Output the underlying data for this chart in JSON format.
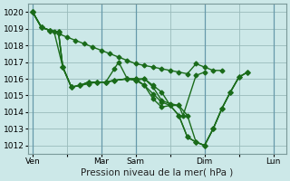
{
  "background_color": "#cce8e8",
  "grid_color": "#99bbbb",
  "line_color": "#1a6b1a",
  "marker": "D",
  "markersize": 2.5,
  "linewidth": 1.0,
  "ylim": [
    1011.5,
    1020.5
  ],
  "yticks": [
    1012,
    1013,
    1014,
    1015,
    1016,
    1017,
    1018,
    1019,
    1020
  ],
  "xlabel": "Pression niveau de la mer( hPa )",
  "xlabel_fontsize": 7.5,
  "tick_fontsize": 6.5,
  "xtick_labels": [
    "Ven",
    "",
    "Mar",
    "Sam",
    "",
    "Dim",
    "",
    "Lun"
  ],
  "xtick_positions": [
    0,
    16,
    32,
    48,
    64,
    80,
    96,
    112
  ],
  "xlim": [
    -2,
    118
  ],
  "vlines": [
    0,
    32,
    48,
    80,
    112
  ],
  "lines": [
    [
      0,
      1020.0,
      4,
      1019.1,
      8,
      1018.9,
      12,
      1018.7,
      16,
      1018.5,
      20,
      1018.3,
      24,
      1018.1,
      28,
      1017.9,
      32,
      1017.7,
      36,
      1017.5,
      40,
      1017.3,
      44,
      1017.1,
      48,
      1016.9,
      52,
      1016.8,
      56,
      1016.7,
      60,
      1016.6,
      64,
      1016.5,
      68,
      1016.4,
      72,
      1016.3,
      76,
      1016.9,
      80,
      1016.7,
      84,
      1016.5,
      88,
      1016.5
    ],
    [
      0,
      1020.0,
      4,
      1019.1,
      8,
      1018.9,
      10,
      1018.8,
      14,
      1016.7,
      18,
      1015.5,
      22,
      1015.6,
      26,
      1015.7,
      30,
      1015.8,
      34,
      1015.8,
      38,
      1016.6,
      40,
      1017.0,
      44,
      1016.0,
      48,
      1015.9,
      52,
      1016.0,
      56,
      1015.6,
      60,
      1015.2,
      64,
      1014.4,
      68,
      1014.4,
      70,
      1013.8,
      76,
      1016.2,
      80,
      1016.4
    ],
    [
      0,
      1020.0,
      4,
      1019.1,
      8,
      1018.9,
      12,
      1018.8,
      14,
      1016.7,
      18,
      1015.5,
      22,
      1015.6,
      26,
      1015.8,
      30,
      1015.8,
      34,
      1015.8,
      38,
      1015.9,
      44,
      1016.0,
      48,
      1016.0,
      52,
      1016.0,
      56,
      1015.5,
      60,
      1014.7,
      64,
      1014.5,
      68,
      1014.4,
      72,
      1013.8,
      76,
      1012.2,
      80,
      1012.0,
      84,
      1013.0,
      88,
      1014.2,
      92,
      1015.2,
      96,
      1016.1,
      100,
      1016.4
    ],
    [
      0,
      1020.0,
      4,
      1019.1,
      8,
      1018.9,
      12,
      1018.8,
      14,
      1016.7,
      18,
      1015.5,
      22,
      1015.6,
      26,
      1015.8,
      30,
      1015.8,
      34,
      1015.8,
      38,
      1015.9,
      44,
      1016.0,
      48,
      1015.9,
      52,
      1015.6,
      56,
      1014.8,
      60,
      1014.3,
      64,
      1014.4,
      68,
      1013.8,
      72,
      1012.5,
      76,
      1012.2,
      80,
      1012.0,
      84,
      1013.0,
      88,
      1014.2,
      92,
      1015.2,
      96,
      1016.1,
      100,
      1016.4
    ],
    [
      0,
      1020.0,
      4,
      1019.1,
      8,
      1018.9,
      12,
      1018.8,
      14,
      1016.7,
      18,
      1015.5,
      22,
      1015.6,
      26,
      1015.8,
      30,
      1015.8,
      34,
      1015.8,
      38,
      1015.9,
      44,
      1016.0,
      48,
      1016.0,
      52,
      1015.6,
      56,
      1015.1,
      60,
      1014.6,
      64,
      1014.4,
      68,
      1013.8,
      72,
      1012.5,
      76,
      1012.2,
      80,
      1012.0,
      84,
      1013.0,
      88,
      1014.2,
      92,
      1015.2,
      96,
      1016.1,
      100,
      1016.4
    ]
  ]
}
